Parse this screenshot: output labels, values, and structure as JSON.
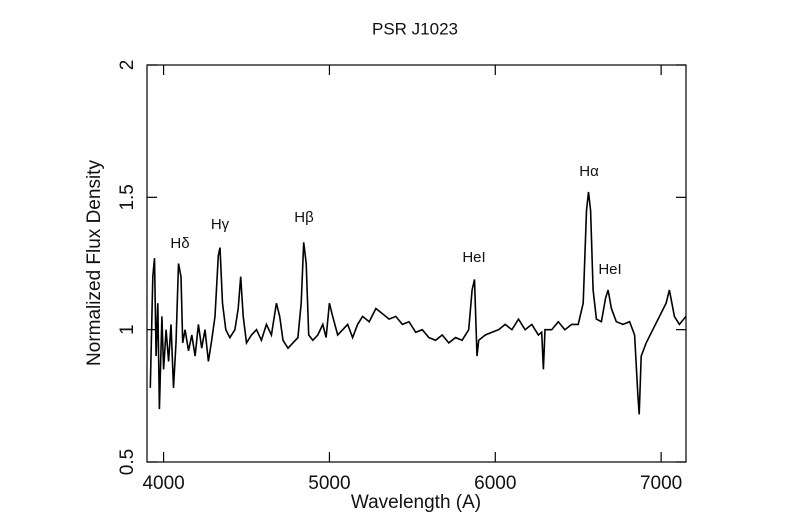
{
  "chart_data": {
    "type": "line",
    "title": "PSR J1023",
    "x_label": "Wavelength (A)",
    "y_label": "Normalized Flux Density",
    "xlim": [
      3900,
      7150
    ],
    "ylim": [
      0.5,
      2
    ],
    "xticks": [
      4000,
      5000,
      6000,
      7000
    ],
    "yticks": [
      0.5,
      1,
      1.5,
      2
    ],
    "annotations": [
      "Hδ",
      "Hγ",
      "Hβ",
      "HeI",
      "Hα",
      "HeI"
    ],
    "series": [
      {
        "color": "#000000",
        "x": [
          3920,
          3935,
          3945,
          3955,
          3965,
          3975,
          3990,
          4000,
          4015,
          4030,
          4045,
          4060,
          4075,
          4090,
          4105,
          4115,
          4130,
          4150,
          4170,
          4190,
          4210,
          4230,
          4250,
          4270,
          4290,
          4310,
          4330,
          4340,
          4355,
          4375,
          4400,
          4430,
          4450,
          4465,
          4480,
          4500,
          4530,
          4560,
          4590,
          4620,
          4650,
          4680,
          4700,
          4720,
          4750,
          4780,
          4810,
          4830,
          4845,
          4860,
          4875,
          4900,
          4930,
          4960,
          4980,
          5000,
          5020,
          5050,
          5080,
          5110,
          5140,
          5170,
          5200,
          5240,
          5280,
          5320,
          5360,
          5400,
          5440,
          5480,
          5520,
          5560,
          5600,
          5640,
          5680,
          5720,
          5760,
          5800,
          5840,
          5860,
          5875,
          5890,
          5900,
          5940,
          5980,
          6020,
          6060,
          6100,
          6140,
          6180,
          6220,
          6260,
          6280,
          6290,
          6300,
          6340,
          6380,
          6420,
          6460,
          6500,
          6530,
          6550,
          6562,
          6575,
          6590,
          6610,
          6640,
          6665,
          6680,
          6700,
          6730,
          6770,
          6810,
          6840,
          6860,
          6868,
          6880,
          6910,
          6950,
          6990,
          7030,
          7050,
          7080,
          7110,
          7150
        ],
        "values": [
          0.78,
          1.2,
          1.27,
          0.9,
          1.1,
          0.7,
          1.05,
          0.85,
          1.0,
          0.88,
          1.02,
          0.78,
          0.95,
          1.25,
          1.2,
          0.95,
          1.0,
          0.92,
          0.98,
          0.9,
          1.02,
          0.93,
          1.0,
          0.88,
          0.96,
          1.05,
          1.28,
          1.31,
          1.1,
          1.0,
          0.97,
          1.0,
          1.08,
          1.2,
          1.05,
          0.95,
          0.98,
          1.0,
          0.96,
          1.02,
          0.98,
          1.1,
          1.05,
          0.96,
          0.93,
          0.95,
          0.97,
          1.1,
          1.33,
          1.25,
          0.98,
          0.96,
          0.98,
          1.02,
          0.97,
          1.1,
          1.05,
          0.98,
          1.0,
          1.02,
          0.97,
          1.02,
          1.05,
          1.03,
          1.08,
          1.06,
          1.04,
          1.05,
          1.02,
          1.03,
          0.99,
          1.0,
          0.97,
          0.96,
          0.98,
          0.95,
          0.97,
          0.96,
          1.0,
          1.15,
          1.19,
          0.9,
          0.96,
          0.98,
          0.99,
          1.0,
          1.02,
          1.0,
          1.04,
          1.0,
          1.02,
          0.98,
          0.99,
          0.85,
          1.0,
          1.0,
          1.03,
          1.0,
          1.02,
          1.02,
          1.1,
          1.45,
          1.52,
          1.45,
          1.15,
          1.04,
          1.03,
          1.12,
          1.15,
          1.08,
          1.03,
          1.02,
          1.03,
          0.98,
          0.75,
          0.68,
          0.9,
          0.95,
          1.0,
          1.05,
          1.1,
          1.15,
          1.05,
          1.02,
          1.05
        ]
      }
    ]
  }
}
